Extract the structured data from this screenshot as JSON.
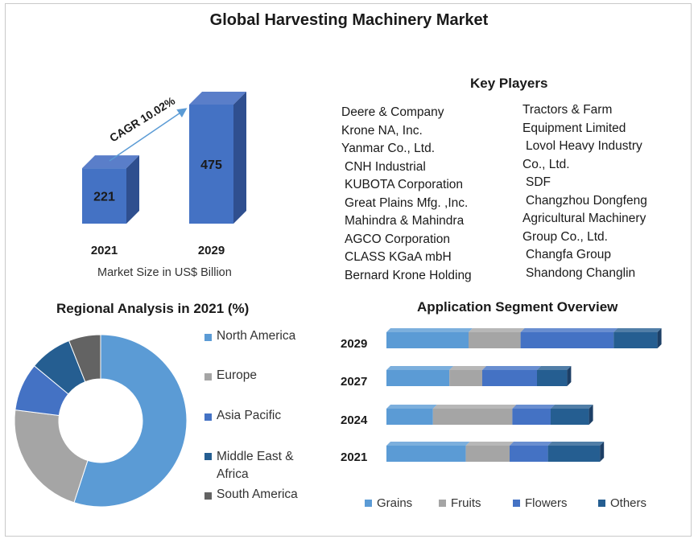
{
  "title": "Global Harvesting Machinery Market",
  "market_size": {
    "cagr_label": "CAGR 10.02%",
    "caption": "Market Size in US$ Billion"
  },
  "key_players": {
    "heading": "Key Players",
    "left": [
      "Deere & Company",
      "Krone NA, Inc.",
      "Yanmar Co., Ltd.",
      "CNH Industrial",
      "KUBOTA Corporation",
      "Great Plains Mfg. ,Inc.",
      "Mahindra & Mahindra",
      "AGCO Corporation",
      "CLASS KGaA mbH",
      "Bernard Krone Holding"
    ],
    "right": [
      "Tractors & Farm",
      "Equipment  Limited",
      "Lovol Heavy Industry",
      "Co., Ltd.",
      "SDF",
      "Changzhou Dongfeng",
      "Agricultural Machinery",
      "Group Co., Ltd.",
      "Changfa Group",
      "Shandong Changlin"
    ]
  },
  "regional": {
    "heading": "Regional Analysis in 2021 (%)"
  },
  "application": {
    "heading": "Application Segment Overview"
  },
  "colors": {
    "bar_front": "#4472c4",
    "bar_side": "#2f4f8f",
    "north_america": "#5b9bd5",
    "europe": "#a5a5a5",
    "asia_pacific": "#4472c4",
    "middle_east_africa": "#255e91",
    "south_america": "#636363"
  },
  "chart_data": [
    {
      "type": "bar",
      "categories": [
        "2021",
        "2029"
      ],
      "values": [
        221,
        475
      ],
      "ylabel": "Market Size in US$ Billion",
      "annotation": "CAGR 10.02%"
    },
    {
      "type": "pie",
      "title": "Regional Analysis in 2021 (%)",
      "donut": true,
      "labels": [
        "North America",
        "Europe",
        "Asia Pacific",
        "Middle East & Africa",
        "South America"
      ],
      "values": [
        55,
        22,
        9,
        8,
        6
      ],
      "legend": "right"
    },
    {
      "type": "bar",
      "orientation": "horizontal",
      "stacked": true,
      "title": "Application Segment Overview",
      "categories": [
        "2029",
        "2027",
        "2024",
        "2021"
      ],
      "series": [
        {
          "name": "Grains",
          "values": [
            30,
            23,
            17,
            29
          ]
        },
        {
          "name": "Fruits",
          "values": [
            19,
            12,
            29,
            16
          ]
        },
        {
          "name": "Flowers",
          "values": [
            34,
            20,
            14,
            14
          ]
        },
        {
          "name": "Others",
          "values": [
            16,
            11,
            14,
            19
          ]
        }
      ],
      "legend": "bottom"
    }
  ]
}
